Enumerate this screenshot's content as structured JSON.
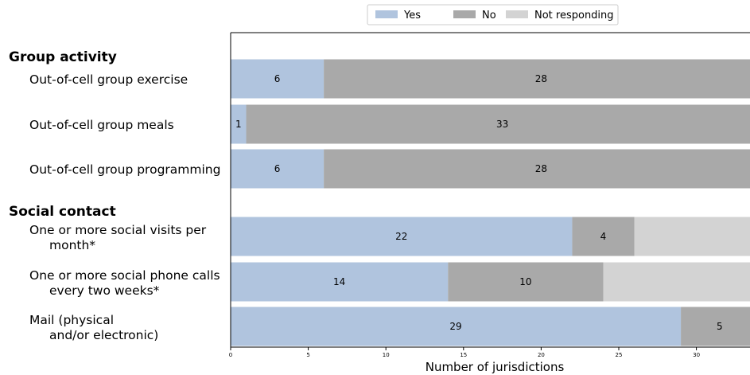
{
  "chart_data": {
    "type": "bar",
    "orientation": "horizontal",
    "stacked": true,
    "xlabel": "Number of jurisdictions",
    "xlim": [
      0,
      33.5
    ],
    "xticks": [
      0,
      5,
      10,
      15,
      20,
      25,
      30
    ],
    "legend": {
      "placement": "top-right",
      "entries": [
        "Yes",
        "No",
        "Not responding"
      ]
    },
    "groups": [
      {
        "label": "Group activity"
      },
      {
        "label": "Social contact"
      }
    ],
    "categories": [
      {
        "group": 0,
        "lines": [
          "Out-of-cell  group exercise"
        ]
      },
      {
        "group": 0,
        "lines": [
          "Out-of-cell group meals"
        ]
      },
      {
        "group": 0,
        "lines": [
          "Out-of-cell group programming"
        ]
      },
      {
        "group": 1,
        "lines": [
          "One or more social visits per",
          "month*"
        ]
      },
      {
        "group": 1,
        "lines": [
          "One or more social phone calls",
          "every two weeks*"
        ]
      },
      {
        "group": 1,
        "lines": [
          "Mail (physical",
          "and/or electronic)"
        ]
      }
    ],
    "series": [
      {
        "name": "Yes",
        "color": "#b0c4de",
        "values": [
          6,
          1,
          6,
          22,
          14,
          29
        ]
      },
      {
        "name": "No",
        "color": "#a9a9a9",
        "values": [
          28,
          33,
          28,
          4,
          10,
          5
        ]
      },
      {
        "name": "Not responding",
        "color": "#d3d3d3",
        "values": [
          0,
          0,
          0,
          8,
          10,
          0
        ]
      }
    ]
  }
}
